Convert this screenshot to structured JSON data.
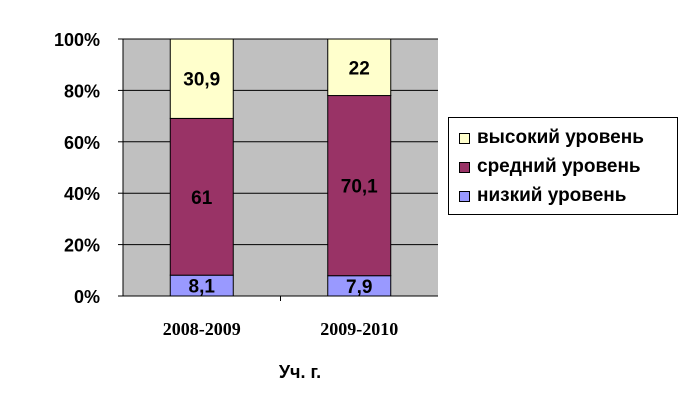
{
  "chart_data": {
    "type": "bar",
    "stacked": true,
    "normalized_percent": true,
    "categories": [
      "2008-2009",
      "2009-2010"
    ],
    "series": [
      {
        "name": "низкий уровень",
        "values": [
          8.1,
          7.9
        ],
        "labels": [
          "8,1",
          "7,9"
        ],
        "color": "#9999ff"
      },
      {
        "name": "средний уровень",
        "values": [
          61,
          70.1
        ],
        "labels": [
          "61",
          "70,1"
        ],
        "color": "#993366"
      },
      {
        "name": "высокий уровень",
        "values": [
          30.9,
          22
        ],
        "labels": [
          "30,9",
          "22"
        ],
        "color": "#ffffcc"
      }
    ],
    "ylim": [
      0,
      100
    ],
    "yticks": [
      "0%",
      "20%",
      "40%",
      "60%",
      "80%",
      "100%"
    ],
    "xlabel": "Уч. г.",
    "grid": true,
    "plot_background": "#c0c0c0",
    "legend_position": "right"
  }
}
